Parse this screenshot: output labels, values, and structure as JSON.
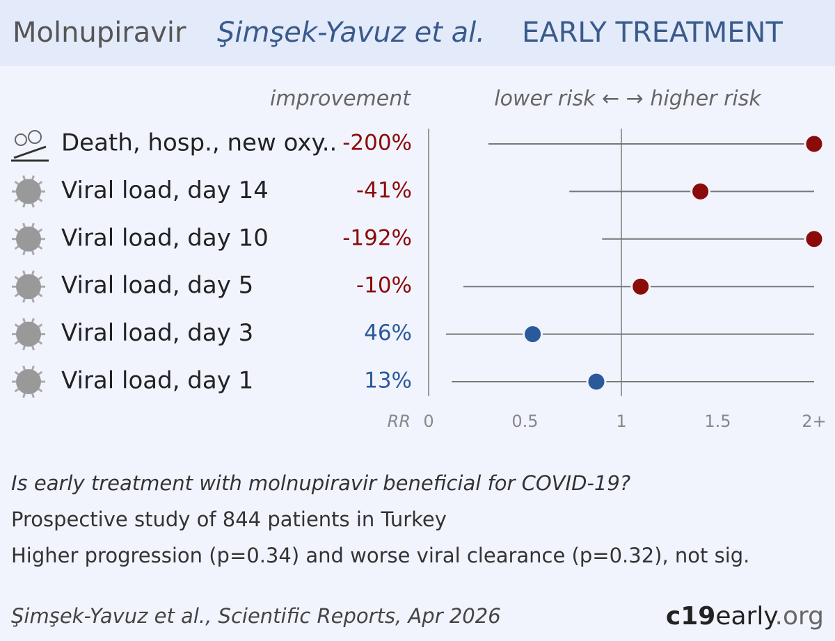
{
  "chart_data": {
    "type": "forest",
    "title": "Molnupiravir",
    "study": "Şimşek-Yavuz et al.",
    "subtitle": "EARLY TREATMENT",
    "improvement_label": "improvement",
    "direction_label": "lower risk ← → higher risk",
    "xlabel": "RR",
    "xlim": [
      0,
      2
    ],
    "xticks": [
      0,
      0.5,
      1,
      1.5,
      {
        "value": 2,
        "label": "2+"
      }
    ],
    "categories": [
      "Death, hosp., new oxy..",
      "Viral load, day 14",
      "Viral load, day 10",
      "Viral load, day 5",
      "Viral load, day 3",
      "Viral load, day 1"
    ],
    "values": [
      3.0,
      1.41,
      2.92,
      1.1,
      0.54,
      0.87
    ],
    "ci_low": [
      0.31,
      0.73,
      0.9,
      0.18,
      0.09,
      0.12
    ],
    "ci_high": [
      28.4,
      2.7,
      9.4,
      6.5,
      3.2,
      6.2
    ],
    "value_labels": [
      "-200%",
      "-41%",
      "-192%",
      "-10%",
      "46%",
      "13%"
    ],
    "colors": [
      "#8b0a0a",
      "#8b0a0a",
      "#8b0a0a",
      "#8b0a0a",
      "#2a5a9b",
      "#2a5a9b"
    ],
    "summary": [
      "Is early treatment with molnupiravir beneficial for COVID-19?",
      "Prospective study of 844 patients in Turkey",
      "Higher progression (p=0.34) and worse viral clearance (p=0.32), not sig."
    ],
    "citation": "Şimşek-Yavuz et al., Scientific Reports, Apr 2026",
    "brand": [
      "c19",
      "early",
      ".org"
    ]
  }
}
